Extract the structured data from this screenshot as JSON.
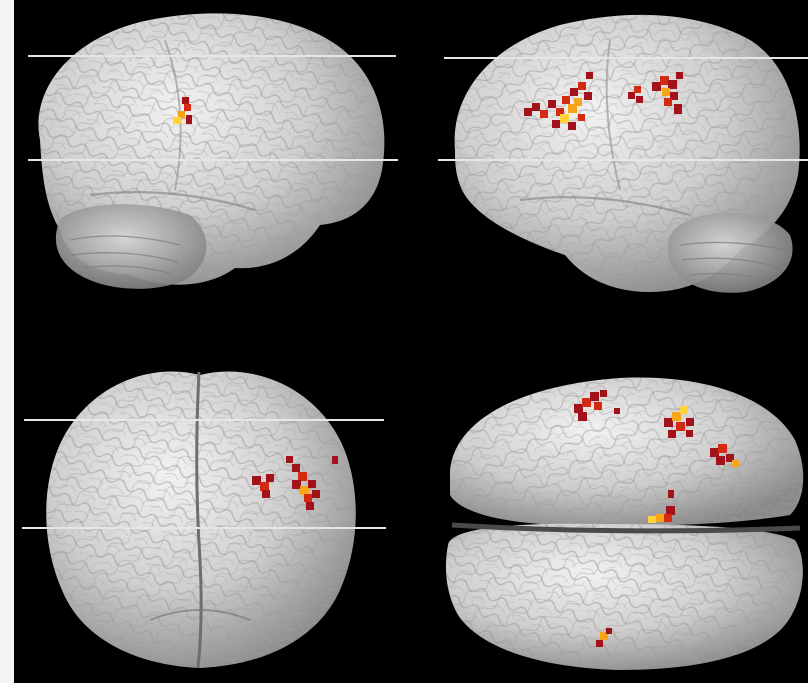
{
  "image": {
    "background_color": "#000000",
    "brain_color": "#d9d9d9",
    "activation_colors": {
      "dark": "#a3111a",
      "mid": "#d42a12",
      "bright": "#f7a61a",
      "peak": "#ffd23a"
    },
    "slice_line_color": "#e6e6e6",
    "views": [
      {
        "name": "left-lateral-view"
      },
      {
        "name": "right-lateral-view"
      },
      {
        "name": "anterior-view"
      },
      {
        "name": "superior-view"
      }
    ]
  }
}
